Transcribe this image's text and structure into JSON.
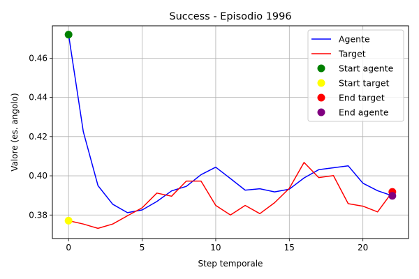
{
  "chart_data": {
    "type": "line",
    "title": "Success - Episodio 1996",
    "xlabel": "Step temporale",
    "ylabel": "Valore (es. angolo)",
    "xlim": [
      -1.1,
      23.1
    ],
    "ylim": [
      0.368,
      0.4765
    ],
    "xticks": [
      0,
      5,
      10,
      15,
      20
    ],
    "yticks": [
      0.38,
      0.4,
      0.42,
      0.44,
      0.46
    ],
    "ytick_labels": [
      "0.38",
      "0.40",
      "0.42",
      "0.44",
      "0.46"
    ],
    "grid": true,
    "legend_position": "top-right",
    "x": [
      0,
      1,
      2,
      3,
      4,
      5,
      6,
      7,
      8,
      9,
      10,
      11,
      12,
      13,
      14,
      15,
      16,
      17,
      18,
      19,
      20,
      21,
      22
    ],
    "series": [
      {
        "name": "Agente",
        "color": "#0000ff",
        "values": [
          0.472,
          0.4225,
          0.395,
          0.3855,
          0.3812,
          0.3826,
          0.3869,
          0.3923,
          0.3946,
          0.4006,
          0.4044,
          0.3986,
          0.3927,
          0.3934,
          0.3918,
          0.3932,
          0.3989,
          0.4031,
          0.4041,
          0.4051,
          0.3962,
          0.3924,
          0.3898
        ]
      },
      {
        "name": "Target",
        "color": "#ff0000",
        "values": [
          0.3771,
          0.3754,
          0.3732,
          0.3754,
          0.3796,
          0.3837,
          0.3912,
          0.3896,
          0.3973,
          0.3973,
          0.3849,
          0.38,
          0.3849,
          0.3807,
          0.3863,
          0.3936,
          0.4068,
          0.3991,
          0.4001,
          0.3858,
          0.3845,
          0.3816,
          0.3918
        ]
      }
    ],
    "markers": [
      {
        "name": "Start agente",
        "color": "#008000",
        "x": 0,
        "y": 0.472
      },
      {
        "name": "Start target",
        "color": "#ffff00",
        "x": 0,
        "y": 0.3771
      },
      {
        "name": "End target",
        "color": "#ff0000",
        "x": 22,
        "y": 0.3918
      },
      {
        "name": "End agente",
        "color": "#800080",
        "x": 22,
        "y": 0.3898
      }
    ]
  }
}
